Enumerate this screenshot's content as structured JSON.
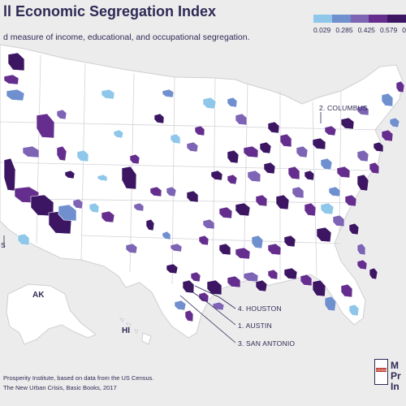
{
  "title": "ll Economic Segregation Index",
  "subtitle": "d measure of income, educational, and occupational segregation.",
  "legend": {
    "labels": [
      "0.029",
      "0.285",
      "0.425",
      "0.579",
      "0"
    ],
    "colors": [
      "#8ec7ea",
      "#6f8fcf",
      "#7d64b4",
      "#652e8e",
      "#3c1663"
    ]
  },
  "callouts": {
    "columbus": "2. COLUMBUS",
    "houston": "4. HOUSTON",
    "austin": "1. AUSTIN",
    "san_antonio": "3. SAN ANTONIO",
    "left_cutoff": "S"
  },
  "state_labels": {
    "ak": "AK",
    "hi": "HI"
  },
  "source": {
    "line1": "Prosperity Institute, based on data from the US Census.",
    "line2": "The New Urban Crisis, Basic Books, 2017"
  },
  "logo": {
    "lines": [
      "M",
      "Pr",
      "In"
    ],
    "badge": "CRISIS"
  },
  "colors": {
    "land": "#ffffff",
    "border": "#cfcfd6",
    "background": "#ececec",
    "lightest": "#8ec7ea",
    "light": "#6f8fcf",
    "mid": "#7d64b4",
    "dark": "#652e8e",
    "darkest": "#3c1663"
  }
}
